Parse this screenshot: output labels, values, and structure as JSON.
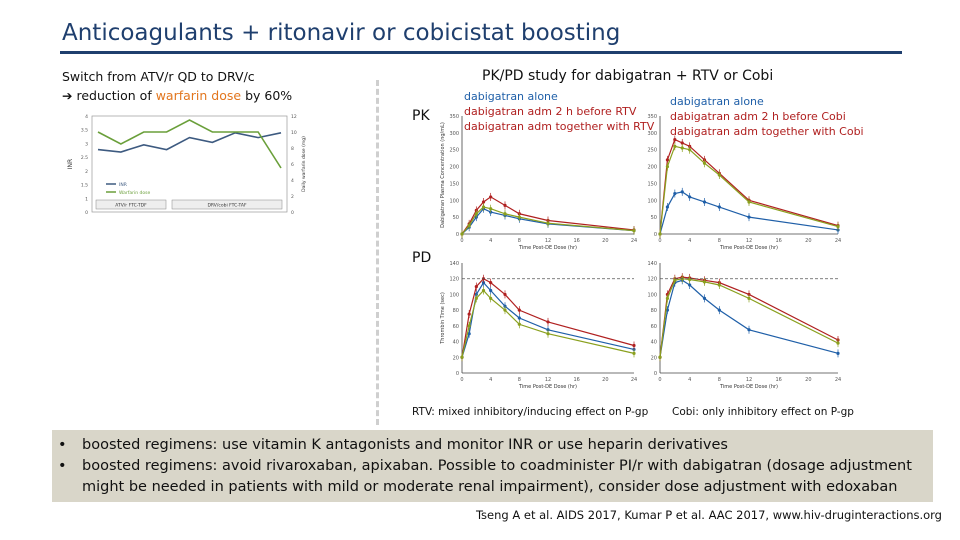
{
  "title": "Anticoagulants + ritonavir or cobicistat boosting",
  "switch": {
    "line1": "Switch from ATV/r QD to DRV/c",
    "prefix": "reduction of ",
    "highlight": "warfarin dose",
    "suffix": " by 60%"
  },
  "pkpd_title": "PK/PD study for dabigatran + RTV or Cobi",
  "labels": {
    "pk": "PK",
    "pd": "PD"
  },
  "legend_rtv": [
    "dabigatran alone",
    "dabigatran  adm 2 h before RTV",
    "dabigatran adm together with RTV"
  ],
  "legend_cobi": [
    "dabigatran alone",
    "dabigatran  adm 2 h before Cobi",
    "dabigatran adm together with Cobi"
  ],
  "captions": {
    "rtv": "RTV: mixed inhibitory/inducing effect on P-gp",
    "cobi": "Cobi: only inhibitory effect on P-gp"
  },
  "bullets": [
    "boosted regimens: use vitamin K antagonists and monitor INR or use heparin derivatives",
    "boosted regimens: avoid rivaroxaban, apixaban. Possible to coadminister PI/r with dabigatran (dosage adjustment might be needed in patients with mild or moderate renal impairment), consider dose adjustment with edoxaban"
  ],
  "references": "Tseng A et al. AIDS 2017, Kumar P et al. AAC 2017, www.hiv-druginteractions.org",
  "colors": {
    "title": "#1f3f6e",
    "highlight": "#e2761e",
    "box": "#d9d6c9",
    "blue": "#1f5fa8",
    "red": "#b02020",
    "green": "#8aa01e"
  },
  "chart_data": [
    {
      "type": "line",
      "title": "",
      "x": [
        1,
        2,
        3,
        4,
        5,
        6,
        7,
        8,
        9
      ],
      "series": [
        {
          "name": "INR",
          "values": [
            2.6,
            2.5,
            2.8,
            2.6,
            3.1,
            2.9,
            3.3,
            3.1,
            3.3
          ]
        },
        {
          "name": "Warfarin dose",
          "values": [
            10,
            8.5,
            10,
            10,
            11.5,
            10,
            10,
            10,
            5.5
          ]
        }
      ],
      "xlabel": "",
      "ylabel": "INR",
      "ylabel_right": "Daily warfarin dose (mg)",
      "ylim": [
        0,
        4
      ],
      "ylim_right": [
        0,
        12
      ],
      "y_ticks": [
        "0",
        "1",
        "1.5",
        "2",
        "2.5",
        "3",
        "3.5",
        "4"
      ],
      "y_ticks_right": [
        "0",
        "2",
        "4",
        "6",
        "8",
        "10",
        "12"
      ],
      "regimen_bars": [
        "ATV/r FTC-TDF",
        "DRV/cobi FTC-TAF"
      ]
    },
    {
      "type": "line",
      "title": "",
      "x": [
        0,
        1,
        2,
        3,
        4,
        6,
        8,
        12,
        24
      ],
      "series": [
        {
          "name": "dabigatran alone",
          "values": [
            0,
            20,
            50,
            75,
            65,
            55,
            45,
            30,
            10
          ]
        },
        {
          "name": "dabigatran  adm 2 h before RTV",
          "values": [
            0,
            30,
            70,
            95,
            110,
            85,
            60,
            40,
            12
          ]
        },
        {
          "name": "dabigatran adm together with RTV",
          "values": [
            0,
            25,
            60,
            80,
            75,
            60,
            50,
            32,
            10
          ]
        }
      ],
      "xlabel": "Time Post-DE Dose (hr)",
      "ylabel": "Dabigatran Plasma Concentration (ng/mL)",
      "ylim": [
        0,
        350
      ],
      "x_ticks": [
        "0",
        "4",
        "8",
        "12",
        "16",
        "20",
        "24"
      ],
      "y_ticks": [
        "0",
        "50",
        "100",
        "150",
        "200",
        "250",
        "300",
        "350"
      ]
    },
    {
      "type": "line",
      "title": "",
      "x": [
        0,
        1,
        2,
        3,
        4,
        6,
        8,
        12,
        24
      ],
      "series": [
        {
          "name": "dabigatran alone",
          "values": [
            0,
            80,
            120,
            125,
            110,
            95,
            80,
            50,
            12
          ]
        },
        {
          "name": "dabigatran  adm 2 h before Cobi",
          "values": [
            0,
            220,
            280,
            270,
            260,
            220,
            180,
            100,
            25
          ]
        },
        {
          "name": "dabigatran adm together with Cobi",
          "values": [
            0,
            200,
            260,
            255,
            250,
            210,
            175,
            95,
            22
          ]
        }
      ],
      "xlabel": "Time Post-DE Dose (hr)",
      "ylabel": "",
      "ylim": [
        0,
        350
      ],
      "x_ticks": [
        "0",
        "4",
        "8",
        "12",
        "16",
        "20",
        "24"
      ],
      "y_ticks": [
        "0",
        "50",
        "100",
        "150",
        "200",
        "250",
        "300",
        "350"
      ]
    },
    {
      "type": "line",
      "title": "",
      "x": [
        0,
        1,
        2,
        3,
        4,
        6,
        8,
        12,
        24
      ],
      "series": [
        {
          "name": "dabigatran alone",
          "values": [
            20,
            50,
            100,
            115,
            105,
            85,
            70,
            55,
            30
          ]
        },
        {
          "name": "dabigatran  adm 2 h before RTV",
          "values": [
            20,
            75,
            110,
            120,
            115,
            100,
            80,
            65,
            35
          ]
        },
        {
          "name": "dabigatran adm together with RTV",
          "values": [
            20,
            60,
            95,
            105,
            95,
            80,
            62,
            50,
            25
          ]
        }
      ],
      "xlabel": "Time Post-DE Dose (hr)",
      "ylabel": "Thrombin Time (sec)",
      "ylim": [
        0,
        140
      ],
      "x_ticks": [
        "0",
        "4",
        "8",
        "12",
        "16",
        "20",
        "24"
      ],
      "y_ticks": [
        "0",
        "20",
        "40",
        "60",
        "80",
        "100",
        "120",
        "140"
      ]
    },
    {
      "type": "line",
      "title": "",
      "x": [
        0,
        1,
        2,
        3,
        4,
        6,
        8,
        12,
        24
      ],
      "series": [
        {
          "name": "dabigatran alone",
          "values": [
            20,
            80,
            115,
            118,
            112,
            95,
            80,
            55,
            25
          ]
        },
        {
          "name": "dabigatran  adm 2 h before Cobi",
          "values": [
            20,
            100,
            120,
            122,
            121,
            118,
            115,
            100,
            42
          ]
        },
        {
          "name": "dabigatran adm together with Cobi",
          "values": [
            20,
            95,
            118,
            120,
            119,
            116,
            112,
            95,
            38
          ]
        }
      ],
      "xlabel": "Time Post-DE Dose (hr)",
      "ylabel": "",
      "ylim": [
        0,
        140
      ],
      "x_ticks": [
        "0",
        "4",
        "8",
        "12",
        "16",
        "20",
        "24"
      ],
      "y_ticks": [
        "0",
        "20",
        "40",
        "60",
        "80",
        "100",
        "120",
        "140"
      ]
    }
  ]
}
